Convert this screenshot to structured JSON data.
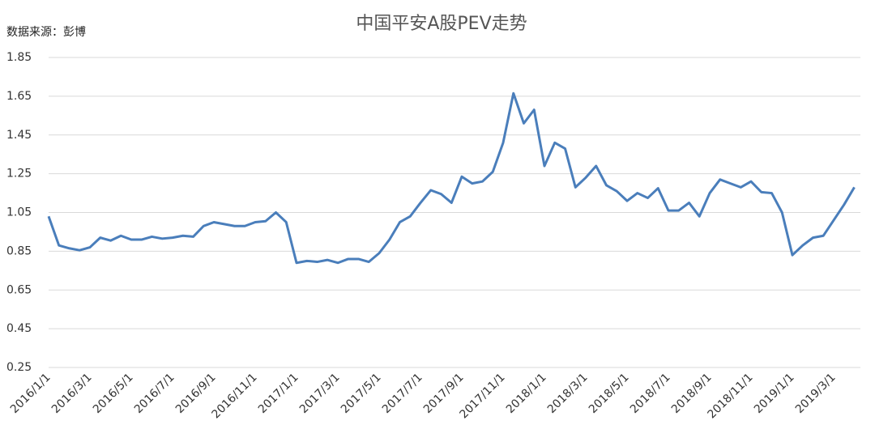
{
  "chart_data": {
    "type": "line",
    "title": "中国平安A股PEV走势",
    "source": "数据来源：彭博",
    "categories": [
      "2016/1/1",
      null,
      null,
      null,
      "2016/3/1",
      null,
      null,
      null,
      "2016/5/1",
      null,
      null,
      null,
      "2016/7/1",
      null,
      null,
      null,
      "2016/9/1",
      null,
      null,
      null,
      "2016/11/1",
      null,
      null,
      null,
      "2017/1/1",
      null,
      null,
      null,
      "2017/3/1",
      null,
      null,
      null,
      "2017/5/1",
      null,
      null,
      null,
      "2017/7/1",
      null,
      null,
      null,
      "2017/9/1",
      null,
      null,
      null,
      "2017/11/1",
      null,
      null,
      null,
      "2018/1/1",
      null,
      null,
      null,
      "2018/3/1",
      null,
      null,
      null,
      "2018/5/1",
      null,
      null,
      null,
      "2018/7/1",
      null,
      null,
      null,
      "2018/9/1",
      null,
      null,
      null,
      "2018/11/1",
      null,
      null,
      null,
      "2019/1/1",
      null,
      null,
      null,
      "2019/3/1",
      null,
      null
    ],
    "values": [
      1.03,
      0.88,
      0.865,
      0.855,
      0.87,
      0.92,
      0.905,
      0.93,
      0.91,
      0.91,
      0.925,
      0.915,
      0.92,
      0.93,
      0.925,
      0.98,
      1.0,
      0.99,
      0.98,
      0.98,
      1.0,
      1.005,
      1.05,
      1.0,
      0.79,
      0.8,
      0.795,
      0.805,
      0.79,
      0.81,
      0.81,
      0.795,
      0.84,
      0.91,
      1.0,
      1.03,
      1.1,
      1.165,
      1.145,
      1.1,
      1.235,
      1.2,
      1.21,
      1.26,
      1.41,
      1.665,
      1.51,
      1.58,
      1.29,
      1.41,
      1.38,
      1.18,
      1.23,
      1.29,
      1.19,
      1.16,
      1.11,
      1.15,
      1.125,
      1.175,
      1.06,
      1.06,
      1.1,
      1.03,
      1.15,
      1.22,
      1.2,
      1.18,
      1.21,
      1.155,
      1.15,
      1.05,
      0.83,
      0.88,
      0.92,
      0.93,
      1.01,
      1.09,
      1.18
    ],
    "color": "#4a7ebb",
    "ylim": [
      0.25,
      1.85
    ],
    "yticks": [
      0.25,
      0.45,
      0.65,
      0.85,
      1.05,
      1.25,
      1.45,
      1.65,
      1.85
    ],
    "grid": true
  }
}
